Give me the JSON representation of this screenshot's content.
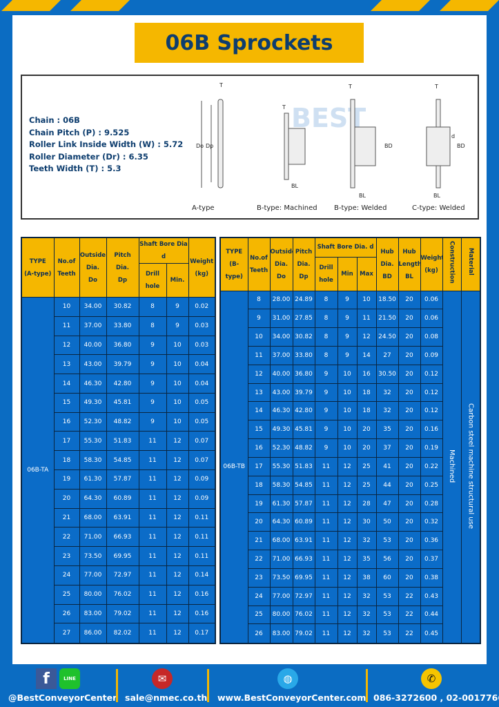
{
  "title": "06B Sprockets",
  "colors": {
    "frame": "#0b6cc2",
    "accent": "#f5b700",
    "title_text": "#0d3d6e",
    "cell": "#0b6cc8"
  },
  "specs": [
    "Chain : 06B",
    "Chain Pitch (P) : 9.525",
    "Roller Link Inside Width (W) : 5.72",
    "Roller Diameter (Dr) : 6.35",
    "Teeth Width (T) : 5.3"
  ],
  "diagram": {
    "captions": [
      "A-type",
      "B-type: Machined",
      "B-type: Welded",
      "C-type: Welded"
    ],
    "labels": {
      "T": "T",
      "Do": "Do",
      "Dp": "Dp",
      "d": "d",
      "BD": "BD",
      "BL": "BL"
    }
  },
  "watermark": "BEST CONVEYOR CENTER",
  "table_a": {
    "headers": {
      "type": "TYPE",
      "type2": "(A-type)",
      "teeth": "No.of",
      "teeth2": "Teeth",
      "do": "Outside",
      "do2": "Dia.",
      "do3": "Do",
      "dp": "Pitch Dia.",
      "dp2": "Dp",
      "bore": "Shaft Bore Dia d",
      "drill": "Drill hole",
      "min": "Min.",
      "weight": "Weight",
      "weight2": "(kg)"
    },
    "type_value": "06B-TA",
    "rows": [
      [
        "10",
        "34.00",
        "30.82",
        "8",
        "9",
        "0.02"
      ],
      [
        "11",
        "37.00",
        "33.80",
        "8",
        "9",
        "0.03"
      ],
      [
        "12",
        "40.00",
        "36.80",
        "9",
        "10",
        "0.03"
      ],
      [
        "13",
        "43.00",
        "39.79",
        "9",
        "10",
        "0.04"
      ],
      [
        "14",
        "46.30",
        "42.80",
        "9",
        "10",
        "0.04"
      ],
      [
        "15",
        "49.30",
        "45.81",
        "9",
        "10",
        "0.05"
      ],
      [
        "16",
        "52.30",
        "48.82",
        "9",
        "10",
        "0.05"
      ],
      [
        "17",
        "55.30",
        "51.83",
        "11",
        "12",
        "0.07"
      ],
      [
        "18",
        "58.30",
        "54.85",
        "11",
        "12",
        "0.07"
      ],
      [
        "19",
        "61.30",
        "57.87",
        "11",
        "12",
        "0.09"
      ],
      [
        "20",
        "64.30",
        "60.89",
        "11",
        "12",
        "0.09"
      ],
      [
        "21",
        "68.00",
        "63.91",
        "11",
        "12",
        "0.11"
      ],
      [
        "22",
        "71.00",
        "66.93",
        "11",
        "12",
        "0.11"
      ],
      [
        "23",
        "73.50",
        "69.95",
        "11",
        "12",
        "0.11"
      ],
      [
        "24",
        "77.00",
        "72.97",
        "11",
        "12",
        "0.14"
      ],
      [
        "25",
        "80.00",
        "76.02",
        "11",
        "12",
        "0.16"
      ],
      [
        "26",
        "83.00",
        "79.02",
        "11",
        "12",
        "0.16"
      ],
      [
        "27",
        "86.00",
        "82.02",
        "11",
        "12",
        "0.17"
      ]
    ]
  },
  "table_b": {
    "headers": {
      "type": "TYPE",
      "type2": "(B-type)",
      "teeth": "No.of",
      "teeth2": "Teeth",
      "do": "Outside",
      "do2": "Dia.",
      "do3": "Do",
      "dp": "Pitch",
      "dp2": "Dia.",
      "dp3": "Dp",
      "bore": "Shaft Bore Dia. d",
      "drill": "Drill hole",
      "min": "Min",
      "max": "Max",
      "bd": "Hub",
      "bd2": "Dia.",
      "bd3": "BD",
      "bl": "Hub",
      "bl2": "Length",
      "bl3": "BL",
      "weight": "Weight",
      "weight2": "(kg)",
      "construction": "Construction",
      "material": "Material"
    },
    "type_value": "06B-TB",
    "construction_value": "Machined",
    "material_value": "Carbon steel machine structural use",
    "rows": [
      [
        "8",
        "28.00",
        "24.89",
        "8",
        "9",
        "10",
        "18.50",
        "20",
        "0.06"
      ],
      [
        "9",
        "31.00",
        "27.85",
        "8",
        "9",
        "11",
        "21.50",
        "20",
        "0.06"
      ],
      [
        "10",
        "34.00",
        "30.82",
        "8",
        "9",
        "12",
        "24.50",
        "20",
        "0.08"
      ],
      [
        "11",
        "37.00",
        "33.80",
        "8",
        "9",
        "14",
        "27",
        "20",
        "0.09"
      ],
      [
        "12",
        "40.00",
        "36.80",
        "9",
        "10",
        "16",
        "30.50",
        "20",
        "0.12"
      ],
      [
        "13",
        "43.00",
        "39.79",
        "9",
        "10",
        "18",
        "32",
        "20",
        "0.12"
      ],
      [
        "14",
        "46.30",
        "42.80",
        "9",
        "10",
        "18",
        "32",
        "20",
        "0.12"
      ],
      [
        "15",
        "49.30",
        "45.81",
        "9",
        "10",
        "20",
        "35",
        "20",
        "0.16"
      ],
      [
        "16",
        "52.30",
        "48.82",
        "9",
        "10",
        "20",
        "37",
        "20",
        "0.19"
      ],
      [
        "17",
        "55.30",
        "51.83",
        "11",
        "12",
        "25",
        "41",
        "20",
        "0.22"
      ],
      [
        "18",
        "58.30",
        "54.85",
        "11",
        "12",
        "25",
        "44",
        "20",
        "0.25"
      ],
      [
        "19",
        "61.30",
        "57.87",
        "11",
        "12",
        "28",
        "47",
        "20",
        "0.28"
      ],
      [
        "20",
        "64.30",
        "60.89",
        "11",
        "12",
        "30",
        "50",
        "20",
        "0.32"
      ],
      [
        "21",
        "68.00",
        "63.91",
        "11",
        "12",
        "32",
        "53",
        "20",
        "0.36"
      ],
      [
        "22",
        "71.00",
        "66.93",
        "11",
        "12",
        "35",
        "56",
        "20",
        "0.37"
      ],
      [
        "23",
        "73.50",
        "69.95",
        "11",
        "12",
        "38",
        "60",
        "20",
        "0.38"
      ],
      [
        "24",
        "77.00",
        "72.97",
        "11",
        "12",
        "32",
        "53",
        "22",
        "0.43"
      ],
      [
        "25",
        "80.00",
        "76.02",
        "11",
        "12",
        "32",
        "53",
        "22",
        "0.44"
      ],
      [
        "26",
        "83.00",
        "79.02",
        "11",
        "12",
        "32",
        "53",
        "22",
        "0.45"
      ]
    ]
  },
  "footer": {
    "social": "@BestConveyorCenter",
    "line_badge": "LINE",
    "email": "sale@nmec.co.th",
    "website": "www.BestConveyorCenter.com",
    "phone": "086-3272600 , 02-0017766"
  }
}
